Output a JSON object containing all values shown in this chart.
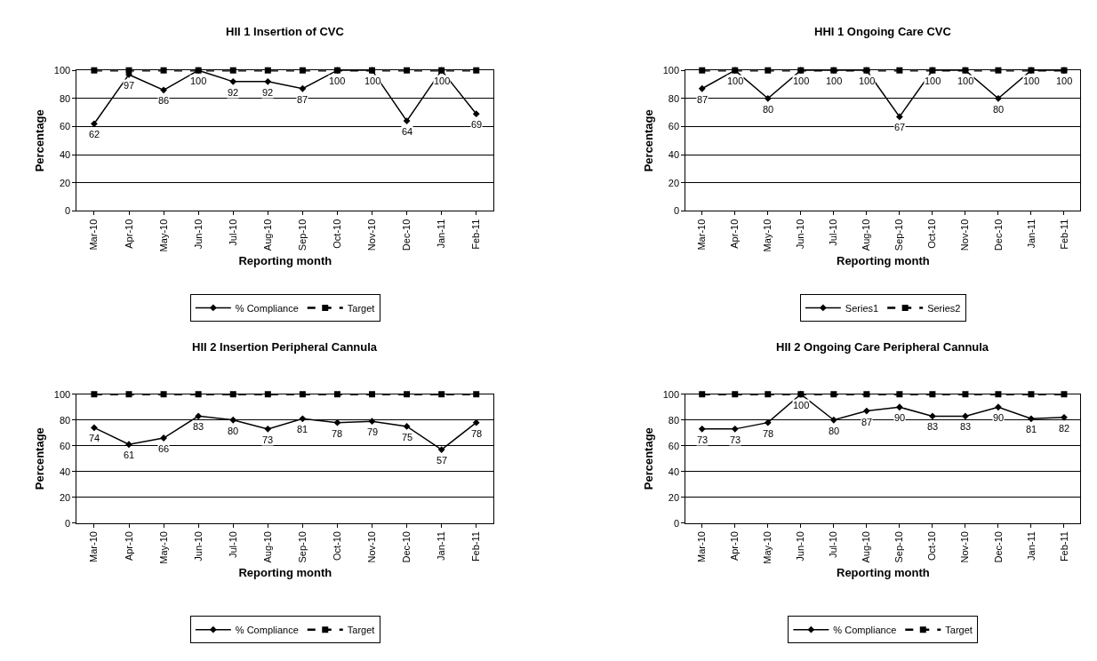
{
  "chart_data": [
    {
      "type": "line",
      "title": "HII 1 Insertion of CVC",
      "xlabel": "Reporting month",
      "ylabel": "Percentage",
      "categories": [
        "Mar-10",
        "Apr-10",
        "May-10",
        "Jun-10",
        "Jul-10",
        "Aug-10",
        "Sep-10",
        "Oct-10",
        "Nov-10",
        "Dec-10",
        "Jan-11",
        "Feb-11"
      ],
      "ylim": [
        0,
        100
      ],
      "yticks": [
        0,
        20,
        40,
        60,
        80,
        100
      ],
      "grid": "y",
      "legend": "bottom",
      "series": [
        {
          "name": "% Compliance",
          "color": "#000000",
          "marker": "diamond",
          "line_style": "solid",
          "values": [
            62,
            97,
            86,
            100,
            92,
            92,
            87,
            100,
            100,
            64,
            100,
            69
          ],
          "value_labels": [
            "62",
            "97",
            "86",
            "100",
            "92",
            "92",
            "87",
            "100",
            "100",
            "64",
            "100",
            "69"
          ]
        },
        {
          "name": "Target",
          "color": "#000000",
          "marker": "square",
          "line_style": "dashed",
          "values": [
            100,
            100,
            100,
            100,
            100,
            100,
            100,
            100,
            100,
            100,
            100,
            100
          ]
        }
      ]
    },
    {
      "type": "line",
      "title": "HHI 1 Ongoing Care CVC",
      "xlabel": "Reporting month",
      "ylabel": "Percentage",
      "categories": [
        "Mar-10",
        "Apr-10",
        "May-10",
        "Jun-10",
        "Jul-10",
        "Aug-10",
        "Sep-10",
        "Oct-10",
        "Nov-10",
        "Dec-10",
        "Jan-11",
        "Feb-11"
      ],
      "ylim": [
        0,
        100
      ],
      "yticks": [
        0,
        20,
        40,
        60,
        80,
        100
      ],
      "grid": "y",
      "legend": "bottom",
      "series": [
        {
          "name": "Series1",
          "color": "#000000",
          "marker": "diamond",
          "line_style": "solid",
          "values": [
            87,
            100,
            80,
            100,
            100,
            100,
            67,
            100,
            100,
            80,
            100,
            100
          ],
          "value_labels": [
            "87",
            "100",
            "80",
            "100",
            "100",
            "100",
            "67",
            "100",
            "100",
            "80",
            "100",
            "100"
          ]
        },
        {
          "name": "Series2",
          "color": "#000000",
          "marker": "square",
          "line_style": "dashed",
          "values": [
            100,
            100,
            100,
            100,
            100,
            100,
            100,
            100,
            100,
            100,
            100,
            100
          ]
        }
      ]
    },
    {
      "type": "line",
      "title": "HII 2 Insertion Peripheral Cannula",
      "xlabel": "Reporting month",
      "ylabel": "Percentage",
      "categories": [
        "Mar-10",
        "Apr-10",
        "May-10",
        "Jun-10",
        "Jul-10",
        "Aug-10",
        "Sep-10",
        "Oct-10",
        "Nov-10",
        "Dec-10",
        "Jan-11",
        "Feb-11"
      ],
      "ylim": [
        0,
        100
      ],
      "yticks": [
        0,
        20,
        40,
        60,
        80,
        100
      ],
      "grid": "y",
      "legend": "bottom",
      "series": [
        {
          "name": "% Compliance",
          "color": "#000000",
          "marker": "diamond",
          "line_style": "solid",
          "values": [
            74,
            61,
            66,
            83,
            80,
            73,
            81,
            78,
            79,
            75,
            57,
            78
          ],
          "value_labels": [
            "74",
            "61",
            "66",
            "83",
            "80",
            "73",
            "81",
            "78",
            "79",
            "75",
            "57",
            "78"
          ]
        },
        {
          "name": "Target",
          "color": "#000000",
          "marker": "square",
          "line_style": "dashed",
          "values": [
            100,
            100,
            100,
            100,
            100,
            100,
            100,
            100,
            100,
            100,
            100,
            100
          ]
        }
      ]
    },
    {
      "type": "line",
      "title": "HII 2 Ongoing Care Peripheral Cannula",
      "xlabel": "Reporting month",
      "ylabel": "Percentage",
      "categories": [
        "Mar-10",
        "Apr-10",
        "May-10",
        "Jun-10",
        "Jul-10",
        "Aug-10",
        "Sep-10",
        "Oct-10",
        "Nov-10",
        "Dec-10",
        "Jan-11",
        "Feb-11"
      ],
      "ylim": [
        0,
        100
      ],
      "yticks": [
        0,
        20,
        40,
        60,
        80,
        100
      ],
      "grid": "y",
      "legend": "bottom",
      "series": [
        {
          "name": "% Compliance",
          "color": "#000000",
          "marker": "diamond",
          "line_style": "solid",
          "values": [
            73,
            73,
            78,
            100,
            80,
            87,
            90,
            83,
            83,
            90,
            81,
            82
          ],
          "value_labels": [
            "73",
            "73",
            "78",
            "100",
            "80",
            "87",
            "90",
            "83",
            "83",
            "90",
            "81",
            "82"
          ]
        },
        {
          "name": "Target",
          "color": "#000000",
          "marker": "square",
          "line_style": "dashed",
          "values": [
            100,
            100,
            100,
            100,
            100,
            100,
            100,
            100,
            100,
            100,
            100,
            100
          ]
        }
      ]
    }
  ]
}
